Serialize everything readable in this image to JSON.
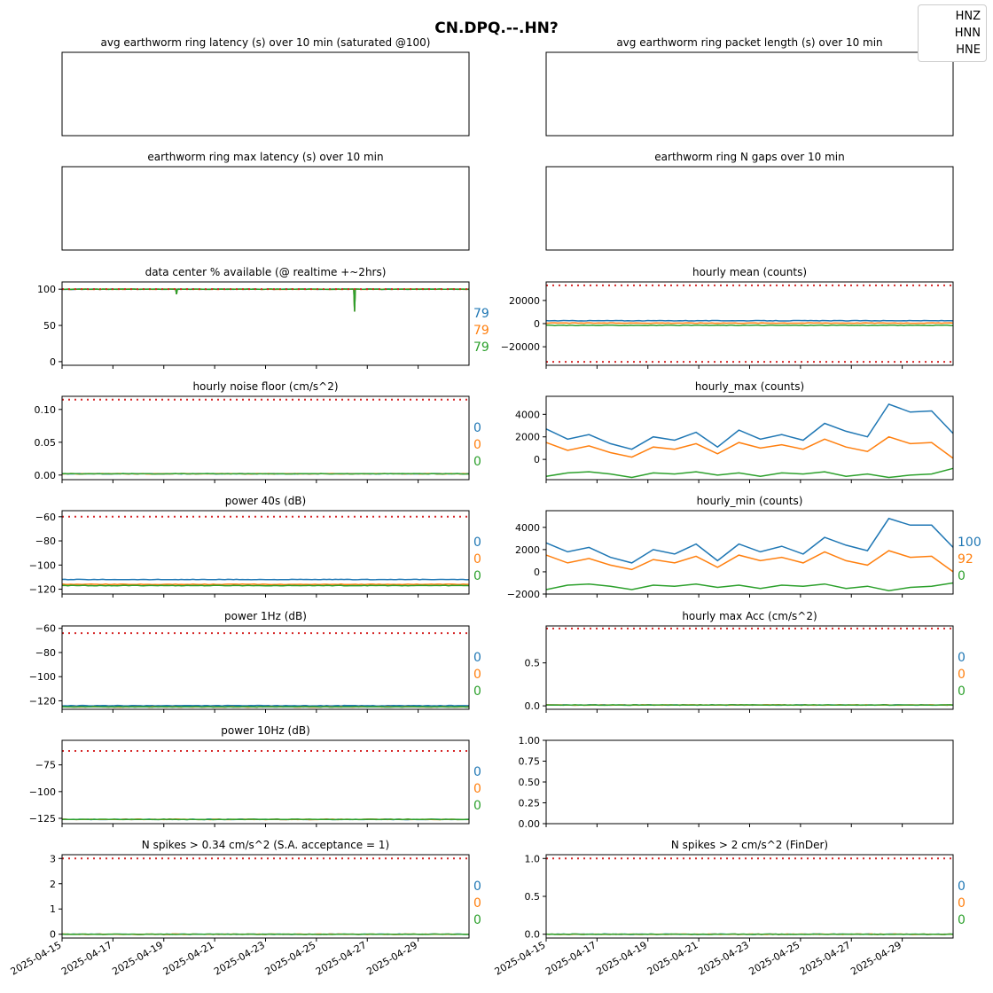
{
  "figure": {
    "title": "CN.DPQ.--.HN?",
    "channels": [
      "HNZ",
      "HNN",
      "HNE"
    ],
    "colors": {
      "HNZ": "#1f77b4",
      "HNN": "#ff7f0e",
      "HNE": "#2ca02c",
      "threshold": "#d62728"
    },
    "date_ticks": [
      "2025-04-15",
      "2025-04-17",
      "2025-04-19",
      "2025-04-21",
      "2025-04-23",
      "2025-04-25",
      "2025-04-27",
      "2025-04-29"
    ],
    "x_range": [
      "2025-04-15",
      "2025-05-01"
    ]
  },
  "chart_data": [
    {
      "id": "p1",
      "title": "avg earthworm ring latency (s)   over 10 min (saturated @100)",
      "type": "line",
      "empty": true,
      "xticks": false
    },
    {
      "id": "p2",
      "title": "avg earthworm ring packet length (s)   over 10 min",
      "type": "line",
      "empty": true,
      "xticks": false
    },
    {
      "id": "p3",
      "title": "earthworm ring max latency (s)   over 10 min",
      "type": "line",
      "empty": true,
      "xticks": false
    },
    {
      "id": "p4",
      "title": "earthworm ring N gaps   over 10 min",
      "type": "line",
      "empty": true,
      "xticks": false
    },
    {
      "id": "p5",
      "title": "data center % available (@ realtime +~2hrs)",
      "type": "line",
      "ylim": [
        -5,
        110
      ],
      "yticks": [
        "0",
        "50",
        "100"
      ],
      "threshold": 100,
      "series": [
        {
          "channel": "HNZ",
          "level": 100,
          "dips": [
            [
              "2025-04-19",
              93
            ],
            [
              "2025-04-26",
              69
            ],
            [
              "2025-04-26",
              70
            ]
          ]
        },
        {
          "channel": "HNN",
          "level": 100,
          "dips": [
            [
              "2025-04-19",
              93
            ],
            [
              "2025-04-26",
              69
            ],
            [
              "2025-04-26",
              70
            ]
          ]
        },
        {
          "channel": "HNE",
          "level": 100,
          "dips": [
            [
              "2025-04-19",
              93
            ],
            [
              "2025-04-26",
              69
            ],
            [
              "2025-04-26",
              70
            ]
          ]
        }
      ],
      "side_labels": [
        "79",
        "79",
        "79"
      ]
    },
    {
      "id": "p6",
      "title": "hourly mean (counts)",
      "type": "line",
      "ylim": [
        -36000,
        36000
      ],
      "yticks": [
        "−20000",
        "0",
        "20000"
      ],
      "thresholds": [
        33000,
        -33000
      ],
      "series": [
        {
          "channel": "HNZ",
          "level": 2500
        },
        {
          "channel": "HNN",
          "level": 500
        },
        {
          "channel": "HNE",
          "level": -1500
        }
      ]
    },
    {
      "id": "p7",
      "title": "hourly noise floor (cm/s^2)",
      "type": "line",
      "ylim": [
        -0.007,
        0.12
      ],
      "yticks": [
        "0.00",
        "0.05",
        "0.10"
      ],
      "threshold": 0.115,
      "series": [
        {
          "channel": "HNZ",
          "level": 0.002
        },
        {
          "channel": "HNN",
          "level": 0.002
        },
        {
          "channel": "HNE",
          "level": 0.002
        }
      ],
      "side_labels": [
        "0",
        "0",
        "0"
      ]
    },
    {
      "id": "p8",
      "title": "hourly_max (counts)",
      "type": "line",
      "ylim": [
        -1800,
        5600
      ],
      "yticks": [
        "0",
        "2000",
        "4000"
      ],
      "series": [
        {
          "channel": "HNZ",
          "values": [
            2700,
            1800,
            2200,
            1400,
            900,
            2000,
            1700,
            2400,
            1100,
            2600,
            1800,
            2200,
            1700,
            3200,
            2500,
            2000,
            4900,
            4200,
            4300,
            2300
          ]
        },
        {
          "channel": "HNN",
          "values": [
            1500,
            800,
            1200,
            600,
            200,
            1100,
            900,
            1400,
            500,
            1500,
            1000,
            1300,
            900,
            1800,
            1100,
            700,
            2000,
            1400,
            1500,
            100
          ]
        },
        {
          "channel": "HNE",
          "values": [
            -1500,
            -1200,
            -1100,
            -1300,
            -1600,
            -1200,
            -1300,
            -1100,
            -1400,
            -1200,
            -1500,
            -1200,
            -1300,
            -1100,
            -1500,
            -1300,
            -1600,
            -1400,
            -1300,
            -800
          ]
        }
      ]
    },
    {
      "id": "p9",
      "title": "power 40s (dB)",
      "type": "line",
      "ylim": [
        -124,
        -55
      ],
      "yticks": [
        "−120",
        "−100",
        "−80",
        "−60"
      ],
      "threshold": -60,
      "series": [
        {
          "channel": "HNZ",
          "level": -112
        },
        {
          "channel": "HNN",
          "level": -116
        },
        {
          "channel": "HNE",
          "level": -117
        }
      ],
      "side_labels": [
        "0",
        "0",
        "0"
      ]
    },
    {
      "id": "p10",
      "title": "hourly_min (counts)",
      "type": "line",
      "ylim": [
        -2000,
        5500
      ],
      "yticks": [
        "−2000",
        "0",
        "2000",
        "4000"
      ],
      "series": [
        {
          "channel": "HNZ",
          "values": [
            2600,
            1800,
            2200,
            1300,
            800,
            2000,
            1600,
            2500,
            1000,
            2500,
            1800,
            2300,
            1600,
            3100,
            2400,
            1900,
            4800,
            4200,
            4200,
            2200
          ]
        },
        {
          "channel": "HNN",
          "values": [
            1500,
            800,
            1200,
            600,
            200,
            1100,
            800,
            1400,
            400,
            1500,
            1000,
            1300,
            800,
            1800,
            1000,
            600,
            1900,
            1300,
            1400,
            0
          ]
        },
        {
          "channel": "HNE",
          "values": [
            -1600,
            -1200,
            -1100,
            -1300,
            -1600,
            -1200,
            -1300,
            -1100,
            -1400,
            -1200,
            -1500,
            -1200,
            -1300,
            -1100,
            -1500,
            -1300,
            -1700,
            -1400,
            -1300,
            -1000
          ]
        }
      ],
      "side_labels": [
        "100",
        "92",
        "0"
      ]
    },
    {
      "id": "p11",
      "title": "power 1Hz (dB)",
      "type": "line",
      "ylim": [
        -127,
        -58
      ],
      "yticks": [
        "−120",
        "−100",
        "−80",
        "−60"
      ],
      "threshold": -64,
      "series": [
        {
          "channel": "HNZ",
          "level": -124
        },
        {
          "channel": "HNN",
          "level": -125
        },
        {
          "channel": "HNE",
          "level": -125
        }
      ],
      "side_labels": [
        "0",
        "0",
        "0"
      ]
    },
    {
      "id": "p12",
      "title": "hourly max Acc (cm/s^2)",
      "type": "line",
      "ylim": [
        -0.04,
        0.93
      ],
      "yticks": [
        "0.0",
        "0.5"
      ],
      "threshold": 0.9,
      "series": [
        {
          "channel": "HNZ",
          "level": 0.01
        },
        {
          "channel": "HNN",
          "level": 0.01
        },
        {
          "channel": "HNE",
          "level": 0.01
        }
      ],
      "side_labels": [
        "0",
        "0",
        "0"
      ]
    },
    {
      "id": "p13",
      "title": "power 10Hz (dB)",
      "type": "line",
      "ylim": [
        -130,
        -52
      ],
      "yticks": [
        "−125",
        "−100",
        "−75"
      ],
      "threshold": -62,
      "series": [
        {
          "channel": "HNZ",
          "level": -126
        },
        {
          "channel": "HNN",
          "level": -126
        },
        {
          "channel": "HNE",
          "level": -126
        }
      ],
      "side_labels": [
        "0",
        "0",
        "0"
      ]
    },
    {
      "id": "p14",
      "title": "",
      "type": "line",
      "empty": true,
      "ylim": [
        0,
        1
      ],
      "yticks": [
        "0.00",
        "0.25",
        "0.50",
        "0.75",
        "1.00"
      ]
    },
    {
      "id": "p15",
      "title": "N spikes > 0.34 cm/s^2 (S.A. acceptance = 1)",
      "type": "line",
      "ylim": [
        -0.15,
        3.15
      ],
      "yticks": [
        "0",
        "1",
        "2",
        "3"
      ],
      "threshold": 3,
      "series": [
        {
          "channel": "HNZ",
          "level": 0
        },
        {
          "channel": "HNN",
          "level": 0
        },
        {
          "channel": "HNE",
          "level": 0
        }
      ],
      "side_labels": [
        "0",
        "0",
        "0"
      ],
      "date_labels": true
    },
    {
      "id": "p16",
      "title": "N spikes > 2 cm/s^2 (FinDer)",
      "type": "line",
      "ylim": [
        -0.05,
        1.05
      ],
      "yticks": [
        "0.0",
        "0.5",
        "1.0"
      ],
      "threshold": 1,
      "series": [
        {
          "channel": "HNZ",
          "level": 0
        },
        {
          "channel": "HNN",
          "level": 0
        },
        {
          "channel": "HNE",
          "level": 0
        }
      ],
      "side_labels": [
        "0",
        "0",
        "0"
      ],
      "date_labels": true
    }
  ]
}
